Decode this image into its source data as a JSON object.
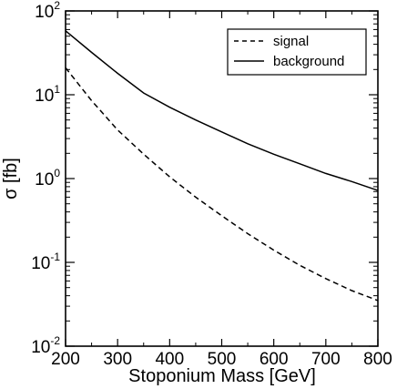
{
  "chart_data": {
    "type": "line",
    "xlabel": "Stoponium Mass  [GeV]",
    "ylabel": "σ  [fb]",
    "xlim": [
      200,
      800
    ],
    "ylim": [
      0.01,
      100
    ],
    "yscale": "log",
    "grid": false,
    "legend_position": "top-right",
    "x_ticks": [
      200,
      300,
      400,
      500,
      600,
      700,
      800
    ],
    "x_tick_labels": [
      "200",
      "300",
      "400",
      "500",
      "600",
      "700",
      "800"
    ],
    "y_ticks": [
      {
        "value": 0.01,
        "base": "10",
        "exp": "-2"
      },
      {
        "value": 0.1,
        "base": "10",
        "exp": "-1"
      },
      {
        "value": 1,
        "base": "10",
        "exp": "0"
      },
      {
        "value": 10,
        "base": "10",
        "exp": "1"
      },
      {
        "value": 100,
        "base": "10",
        "exp": "2"
      }
    ],
    "series": [
      {
        "name": "signal",
        "style": "dashed",
        "color": "#000000",
        "x": [
          200,
          250,
          300,
          350,
          400,
          450,
          500,
          550,
          600,
          650,
          700,
          750,
          800
        ],
        "y": [
          21,
          8.5,
          3.8,
          1.95,
          1.05,
          0.6,
          0.36,
          0.22,
          0.14,
          0.092,
          0.064,
          0.046,
          0.035
        ]
      },
      {
        "name": "background",
        "style": "solid",
        "color": "#000000",
        "x": [
          200,
          250,
          300,
          350,
          400,
          450,
          500,
          550,
          600,
          650,
          700,
          750,
          800
        ],
        "y": [
          58,
          32,
          18,
          10.5,
          7.1,
          5.0,
          3.6,
          2.6,
          1.95,
          1.5,
          1.15,
          0.92,
          0.72
        ]
      }
    ]
  }
}
